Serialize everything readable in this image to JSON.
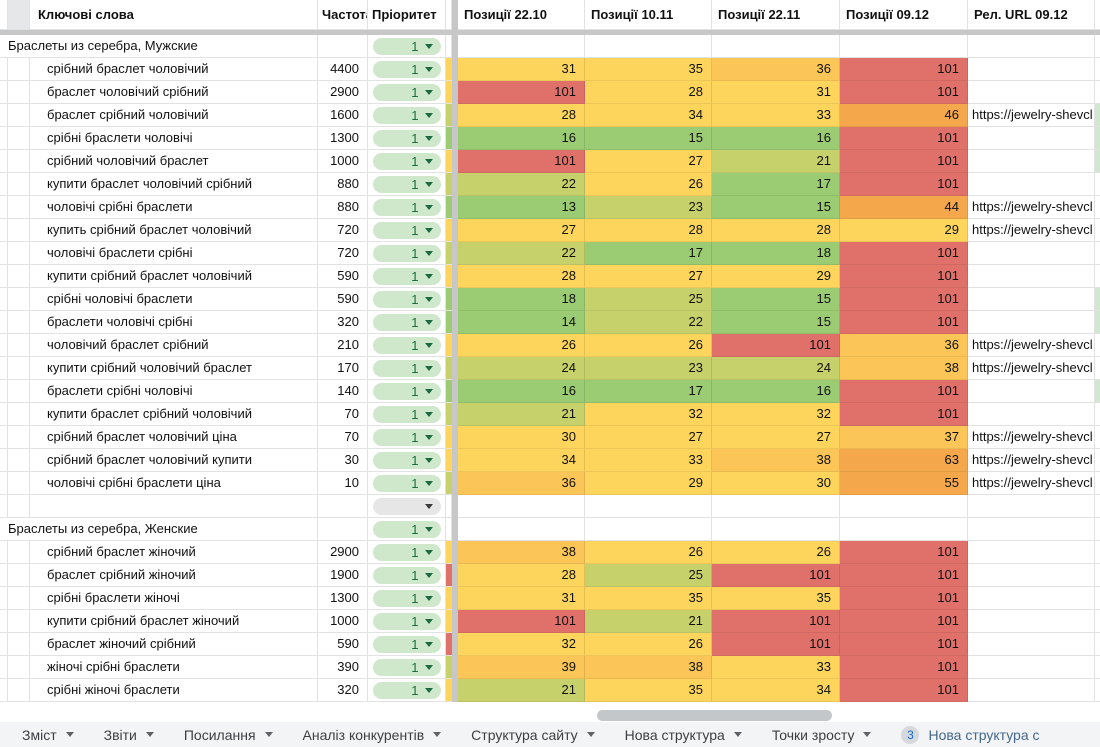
{
  "palette": {
    "green": "#9bcb72",
    "olive": "#c7d16c",
    "yellow": "#fdd55d",
    "yellow_orange": "#fbc657",
    "orange": "#f4a84b",
    "red": "#e0716a",
    "light_green_sliver": "#d2e7cf",
    "chip_green_bg": "#cfe8cc",
    "chip_text": "#13713f",
    "grid_line": "#e2e2e2",
    "frozen_divider": "#c7c7c7",
    "tabbar_bg": "#f3f4f5"
  },
  "conditional_format": {
    "rules": [
      {
        "gte": 101,
        "color": "#e0716a"
      },
      {
        "gte": 44,
        "color": "#f4a84b"
      },
      {
        "gte": 36,
        "color": "#fbc657"
      },
      {
        "gte": 26,
        "color": "#fdd55d"
      },
      {
        "gte": 19,
        "color": "#c7d16c"
      },
      {
        "gte": 0,
        "color": "#9bcb72"
      }
    ]
  },
  "table": {
    "keyword_header": "Ключові слова",
    "freq_header": "Частота",
    "priority_header": "Пріоритет",
    "position_headers": [
      "Позиції 22.10",
      "Позиції 10.11",
      "Позиції 22.11",
      "Позиції 09.12"
    ],
    "url_header": "Рел. URL 09.12",
    "url_text": "https://jewelry-shevcl",
    "rows": [
      {
        "t": "g",
        "k": "Браслеты из серебра, Мужские",
        "p": "1"
      },
      {
        "t": "k",
        "k": "срібний браслет чоловічий",
        "f": "4400",
        "p": "1",
        "s": "yellow",
        "pos": [
          31,
          35,
          36,
          101
        ],
        "u": false,
        "rs": false
      },
      {
        "t": "k",
        "k": "браслет чоловічий срібний",
        "f": "2900",
        "p": "1",
        "s": "yellow",
        "pos": [
          101,
          28,
          31,
          101
        ],
        "u": false,
        "rs": false
      },
      {
        "t": "k",
        "k": "браслет срібний чоловічий",
        "f": "1600",
        "p": "1",
        "s": "olive",
        "pos": [
          28,
          34,
          33,
          46
        ],
        "u": true,
        "rs": true
      },
      {
        "t": "k",
        "k": "срібні браслети чоловічі",
        "f": "1300",
        "p": "1",
        "s": "green",
        "pos": [
          16,
          15,
          16,
          101
        ],
        "u": false,
        "rs": true
      },
      {
        "t": "k",
        "k": "срібний чоловічий браслет",
        "f": "1000",
        "p": "1",
        "s": "yellow",
        "pos": [
          101,
          27,
          21,
          101
        ],
        "u": false,
        "rs": true
      },
      {
        "t": "k",
        "k": "купити браслет чоловічий срібний",
        "f": "880",
        "p": "1",
        "s": "olive",
        "pos": [
          22,
          26,
          17,
          101
        ],
        "u": false,
        "rs": false
      },
      {
        "t": "k",
        "k": "чоловічі срібні браслети",
        "f": "880",
        "p": "1",
        "s": "green",
        "pos": [
          13,
          23,
          15,
          44
        ],
        "u": true,
        "rs": false
      },
      {
        "t": "k",
        "k": "купить срібний браслет чоловічий",
        "f": "720",
        "p": "1",
        "s": "yellow",
        "pos": [
          27,
          28,
          28,
          29
        ],
        "u": true,
        "rs": false
      },
      {
        "t": "k",
        "k": "чоловічі браслети срібні",
        "f": "720",
        "p": "1",
        "s": "olive",
        "pos": [
          22,
          17,
          18,
          101
        ],
        "u": false,
        "rs": false
      },
      {
        "t": "k",
        "k": "купити срібний браслет чоловічий",
        "f": "590",
        "p": "1",
        "s": "yellow",
        "pos": [
          28,
          27,
          29,
          101
        ],
        "u": false,
        "rs": false
      },
      {
        "t": "k",
        "k": "срібні чоловічі браслети",
        "f": "590",
        "p": "1",
        "s": "green",
        "pos": [
          18,
          25,
          15,
          101
        ],
        "u": false,
        "rs": true
      },
      {
        "t": "k",
        "k": "браслети чоловічі срібні",
        "f": "320",
        "p": "1",
        "s": "green",
        "pos": [
          14,
          22,
          15,
          101
        ],
        "u": false,
        "rs": true
      },
      {
        "t": "k",
        "k": "чоловічий браслет срібний",
        "f": "210",
        "p": "1",
        "s": "yellow",
        "pos": [
          26,
          26,
          101,
          36
        ],
        "u": true,
        "rs": false
      },
      {
        "t": "k",
        "k": "купити срібний чоловічий браслет",
        "f": "170",
        "p": "1",
        "s": "olive",
        "pos": [
          24,
          23,
          24,
          38
        ],
        "u": true,
        "rs": false
      },
      {
        "t": "k",
        "k": "браслети срібні чоловічі",
        "f": "140",
        "p": "1",
        "s": "green",
        "pos": [
          16,
          17,
          16,
          101
        ],
        "u": false,
        "rs": true
      },
      {
        "t": "k",
        "k": "купити браслет срібний чоловічий",
        "f": "70",
        "p": "1",
        "s": "olive",
        "pos": [
          21,
          32,
          32,
          101
        ],
        "u": false,
        "rs": false
      },
      {
        "t": "k",
        "k": "срібний браслет чоловічий ціна",
        "f": "70",
        "p": "1",
        "s": "yellow",
        "pos": [
          30,
          27,
          27,
          37
        ],
        "u": true,
        "rs": false
      },
      {
        "t": "k",
        "k": "срібний браслет чоловічий купити",
        "f": "30",
        "p": "1",
        "s": "yellow",
        "pos": [
          34,
          33,
          38,
          63
        ],
        "u": true,
        "rs": false
      },
      {
        "t": "k",
        "k": "чоловічі срібні браслети ціна",
        "f": "10",
        "p": "1",
        "s": "olive",
        "pos": [
          36,
          29,
          30,
          55
        ],
        "u": true,
        "rs": false
      },
      {
        "t": "e",
        "p": ""
      },
      {
        "t": "g",
        "k": "Браслеты из серебра, Женские",
        "p": "1"
      },
      {
        "t": "k",
        "k": "срібний браслет жіночий",
        "f": "2900",
        "p": "1",
        "s": "yellow",
        "pos": [
          38,
          26,
          26,
          101
        ],
        "u": false,
        "rs": false
      },
      {
        "t": "k",
        "k": "браслет срібний жіночий",
        "f": "1900",
        "p": "1",
        "s": "red",
        "pos": [
          28,
          25,
          101,
          101
        ],
        "u": false,
        "rs": false
      },
      {
        "t": "k",
        "k": "срібні браслети жіночі",
        "f": "1300",
        "p": "1",
        "s": "yellow",
        "pos": [
          31,
          35,
          35,
          101
        ],
        "u": false,
        "rs": false
      },
      {
        "t": "k",
        "k": "купити срібний браслет жіночий",
        "f": "1000",
        "p": "1",
        "s": "yellow",
        "pos": [
          101,
          21,
          101,
          101
        ],
        "u": false,
        "rs": false
      },
      {
        "t": "k",
        "k": "браслет жіночий срібний",
        "f": "590",
        "p": "1",
        "s": "red",
        "pos": [
          32,
          26,
          101,
          101
        ],
        "u": false,
        "rs": false
      },
      {
        "t": "k",
        "k": "жіночі срібні браслети",
        "f": "390",
        "p": "1",
        "s": "olive",
        "pos": [
          39,
          38,
          33,
          101
        ],
        "u": false,
        "rs": false
      },
      {
        "t": "k",
        "k": "срібні жіночі браслети",
        "f": "320",
        "p": "1",
        "s": "yellow",
        "pos": [
          21,
          35,
          34,
          101
        ],
        "u": false,
        "rs": false
      }
    ]
  },
  "tabbar": {
    "tabs": [
      {
        "label": "Зміст"
      },
      {
        "label": "Звіти"
      },
      {
        "label": "Посилання"
      },
      {
        "label": "Аналіз конкурентів"
      },
      {
        "label": "Структура сайту"
      },
      {
        "label": "Нова структура"
      },
      {
        "label": "Точки зросту"
      }
    ],
    "overflow_tab": {
      "badge": "3",
      "label": "Нова структура с"
    }
  }
}
